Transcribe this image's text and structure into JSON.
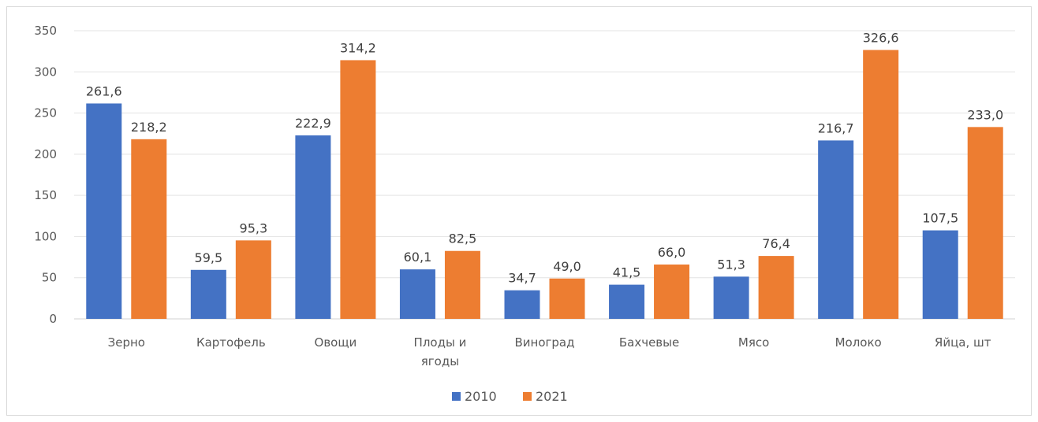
{
  "chart_data": {
    "type": "bar",
    "categories": [
      [
        "Зерно"
      ],
      [
        "Картофель"
      ],
      [
        "Овощи"
      ],
      [
        "Плоды и",
        "ягоды"
      ],
      [
        "Виноград"
      ],
      [
        "Бахчевые"
      ],
      [
        "Мясо"
      ],
      [
        "Молоко"
      ],
      [
        "Яйца, шт"
      ]
    ],
    "series": [
      {
        "name": "2010",
        "color": "#4472C4",
        "values": [
          261.6,
          59.5,
          222.9,
          60.1,
          34.7,
          41.5,
          51.3,
          216.7,
          107.5
        ],
        "labels": [
          "261,6",
          "59,5",
          "222,9",
          "60,1",
          "34,7",
          "41,5",
          "51,3",
          "216,7",
          "107,5"
        ]
      },
      {
        "name": "2021",
        "color": "#ED7D31",
        "values": [
          218.2,
          95.3,
          314.2,
          82.5,
          49.0,
          66.0,
          76.4,
          326.6,
          233.0
        ],
        "labels": [
          "218,2",
          "95,3",
          "314,2",
          "82,5",
          "49,0",
          "66,0",
          "76,4",
          "326,6",
          "233,0"
        ]
      }
    ],
    "ylim": [
      0,
      350
    ],
    "yticks": [
      0,
      50,
      100,
      150,
      200,
      250,
      300,
      350
    ],
    "grid": true,
    "legend": "bottom"
  }
}
